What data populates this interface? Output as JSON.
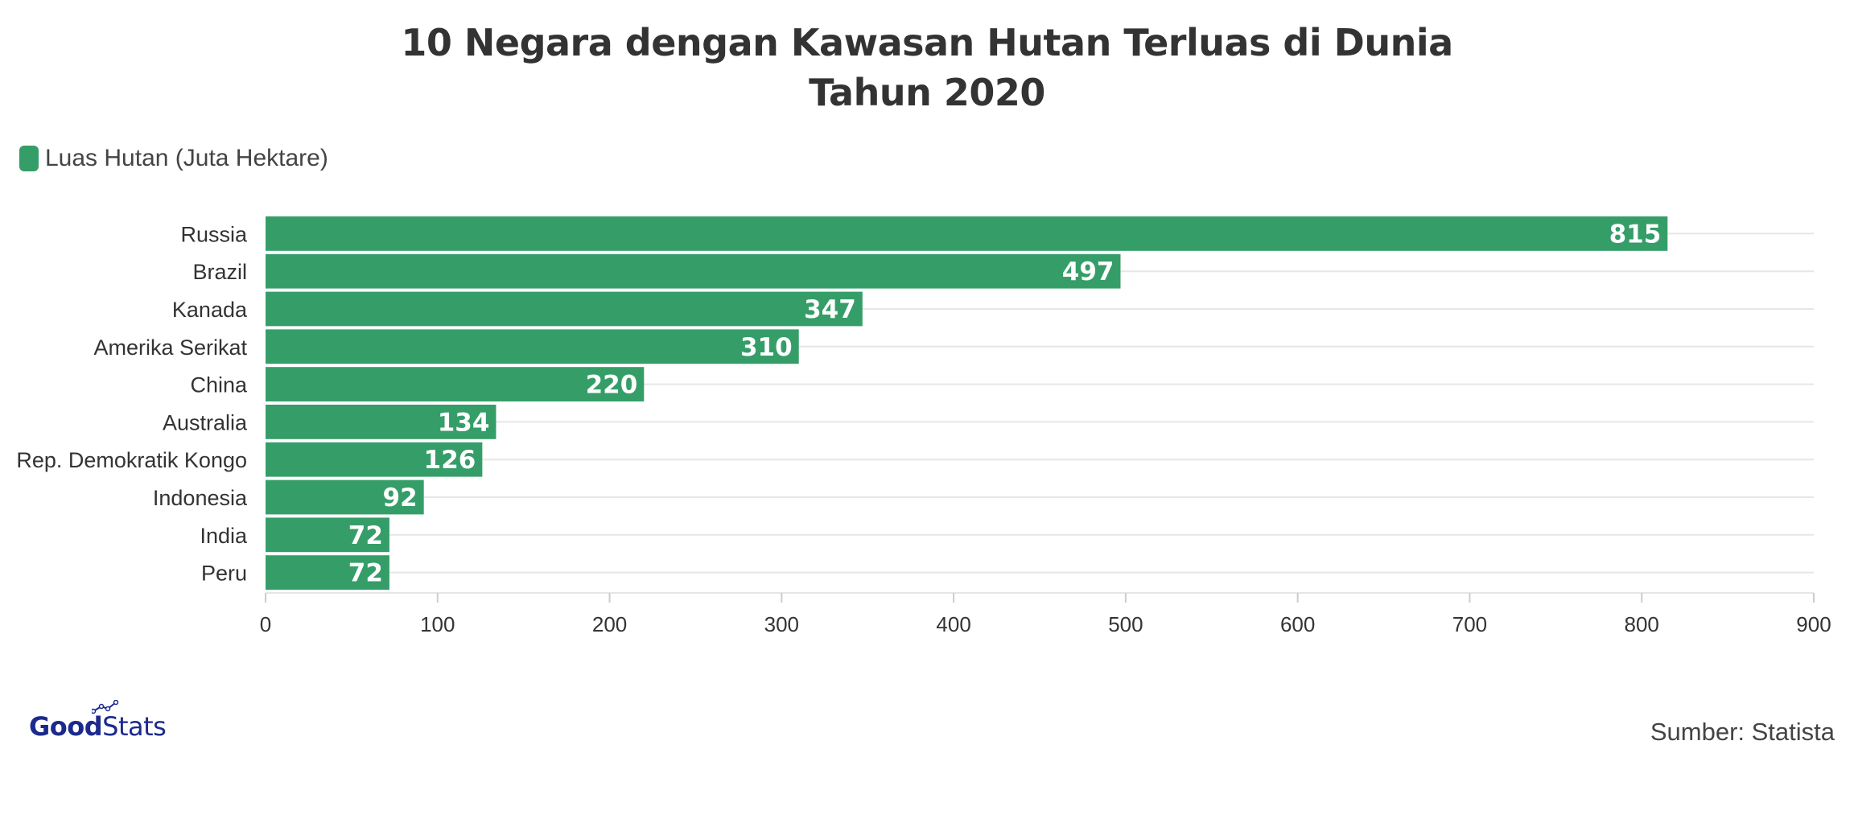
{
  "title": {
    "line1": "10 Negara dengan Kawasan Hutan Terluas di Dunia",
    "line2": "Tahun 2020"
  },
  "legend": {
    "label": "Luas Hutan (Juta Hektare)"
  },
  "colors": {
    "bar": "#359E68",
    "grid": "#e6e6e6",
    "logo": "#1b2a8c"
  },
  "footer": {
    "logo": {
      "good": "Good",
      "stats": "Stats"
    },
    "source": "Sumber: Statista"
  },
  "chart_data": {
    "type": "bar",
    "orientation": "horizontal",
    "categories": [
      "Russia",
      "Brazil",
      "Kanada",
      "Amerika Serikat",
      "China",
      "Australia",
      "Rep. Demokratik Kongo",
      "Indonesia",
      "India",
      "Peru"
    ],
    "series": [
      {
        "name": "Luas Hutan (Juta Hektare)",
        "values": [
          815,
          497,
          347,
          310,
          220,
          134,
          126,
          92,
          72,
          72
        ]
      }
    ],
    "xlim": [
      0,
      900
    ],
    "xticks": [
      0,
      100,
      200,
      300,
      400,
      500,
      600,
      700,
      800,
      900
    ],
    "grid": true,
    "legend_position": "top-left",
    "data_labels": true
  }
}
